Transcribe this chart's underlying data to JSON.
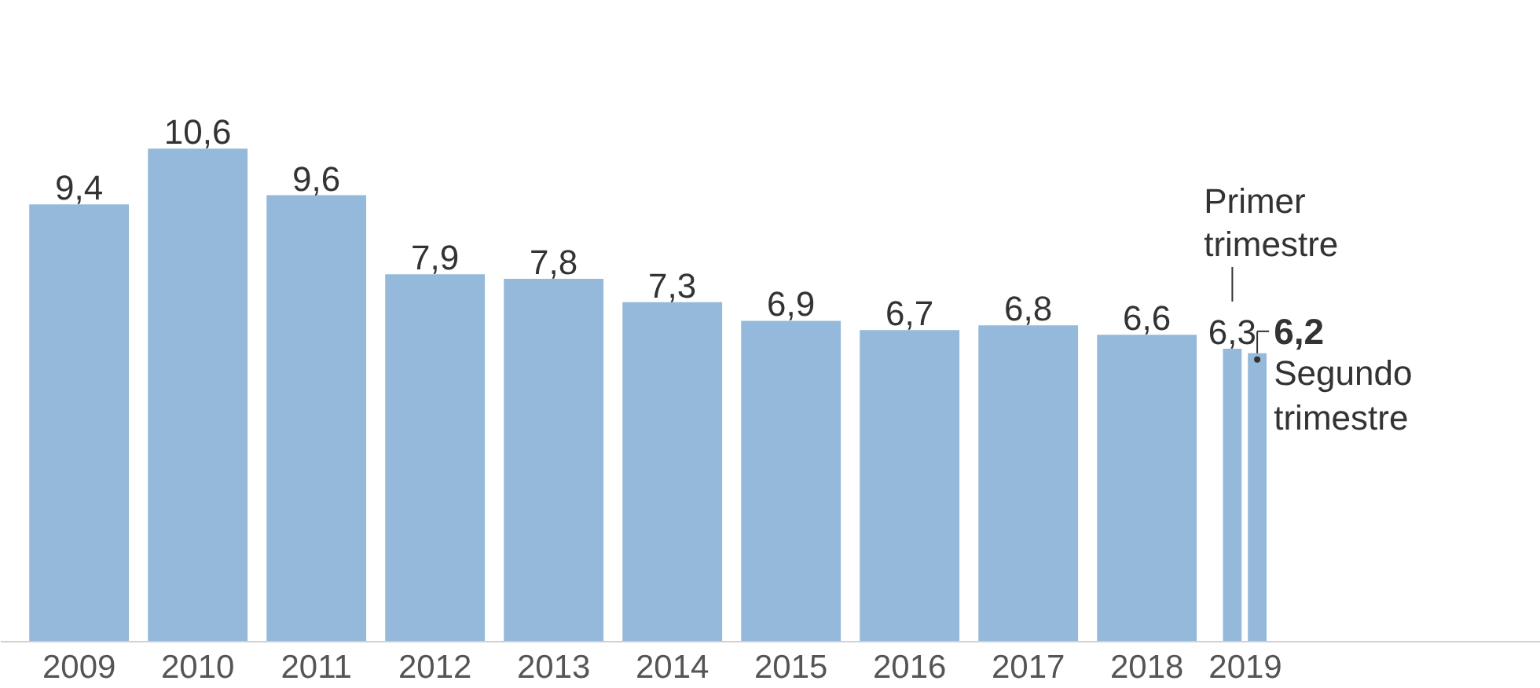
{
  "chart_data": {
    "type": "bar",
    "x": [
      2009,
      2010,
      2011,
      2012,
      2013,
      2014,
      2015,
      2016,
      2017,
      2018,
      2018.72,
      2018.93
    ],
    "values": [
      9.4,
      10.6,
      9.6,
      7.9,
      7.8,
      7.3,
      6.9,
      6.7,
      6.8,
      6.6,
      6.3,
      6.2
    ],
    "value_labels": [
      "9,4",
      "10,6",
      "9,6",
      "7,9",
      "7,8",
      "7,3",
      "6,9",
      "6,7",
      "6,8",
      "6,6",
      "6,3",
      "6,2"
    ],
    "xlim": [
      2008.34,
      2021.32
    ],
    "xticks": [
      2009,
      2010,
      2011,
      2012,
      2013,
      2014,
      2015,
      2016,
      2017,
      2018,
      {
        "value": 2018.83,
        "label": "2019"
      }
    ],
    "color": "#94b9da",
    "annotations": [
      "Primer trimestre",
      "Segundo trimestre"
    ]
  }
}
